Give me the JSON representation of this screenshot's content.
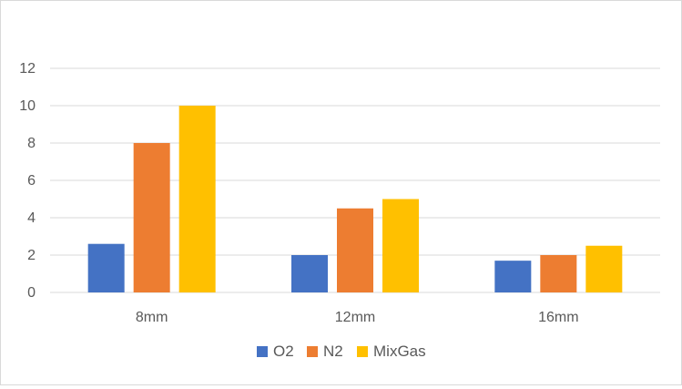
{
  "chart_data": {
    "type": "bar",
    "title": "",
    "xlabel": "",
    "ylabel": "",
    "categories": [
      "8mm",
      "12mm",
      "16mm"
    ],
    "ylim": [
      0,
      12
    ],
    "yticks": [
      0,
      2,
      4,
      6,
      8,
      10,
      12
    ],
    "grid": true,
    "legend_position": "bottom",
    "series": [
      {
        "name": "O2",
        "color": "#4472C4",
        "values": [
          2.6,
          2.0,
          1.7
        ]
      },
      {
        "name": "N2",
        "color": "#ED7D31",
        "values": [
          8.0,
          4.5,
          2.0
        ]
      },
      {
        "name": "MixGas",
        "color": "#FFC000",
        "values": [
          10.0,
          5.0,
          2.5
        ]
      }
    ]
  }
}
